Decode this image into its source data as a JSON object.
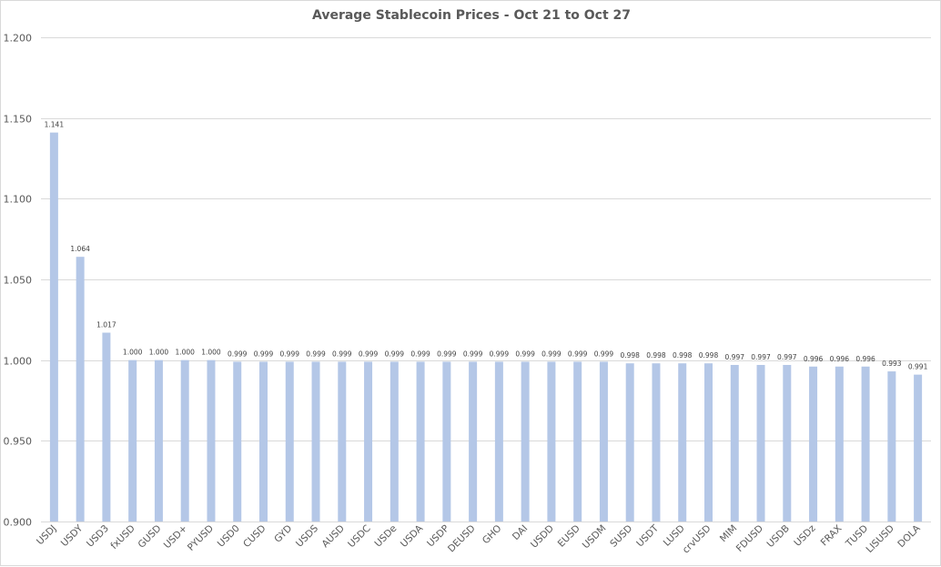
{
  "chart_data": {
    "type": "bar",
    "title": "Average Stablecoin Prices - Oct 21 to Oct 27",
    "xlabel": "",
    "ylabel": "",
    "ylim": [
      0.9,
      1.2
    ],
    "yticks": [
      "0.900",
      "0.950",
      "1.000",
      "1.050",
      "1.100",
      "1.150",
      "1.200"
    ],
    "ytick_values": [
      0.9,
      0.95,
      1.0,
      1.05,
      1.1,
      1.15,
      1.2
    ],
    "grid": true,
    "bar_color": "#b4c7e7",
    "categories": [
      "USDJ",
      "USDY",
      "USD3",
      "fxUSD",
      "GUSD",
      "USD+",
      "PYUSD",
      "USD0",
      "CUSD",
      "GYD",
      "USDS",
      "AUSD",
      "USDC",
      "USDe",
      "USDA",
      "USDP",
      "DEUSD",
      "GHO",
      "DAI",
      "USDD",
      "EUSD",
      "USDM",
      "SUSD",
      "USDT",
      "LUSD",
      "crvUSD",
      "MIM",
      "FDUSD",
      "USDB",
      "USDz",
      "FRAX",
      "TUSD",
      "LISUSD",
      "DOLA"
    ],
    "values": [
      1.141,
      1.064,
      1.017,
      1.0,
      1.0,
      1.0,
      1.0,
      0.999,
      0.999,
      0.999,
      0.999,
      0.999,
      0.999,
      0.999,
      0.999,
      0.999,
      0.999,
      0.999,
      0.999,
      0.999,
      0.999,
      0.999,
      0.998,
      0.998,
      0.998,
      0.998,
      0.997,
      0.997,
      0.997,
      0.996,
      0.996,
      0.996,
      0.993,
      0.991
    ],
    "value_labels": [
      "1.141",
      "1.064",
      "1.017",
      "1.000",
      "1.000",
      "1.000",
      "1.000",
      "0.999",
      "0.999",
      "0.999",
      "0.999",
      "0.999",
      "0.999",
      "0.999",
      "0.999",
      "0.999",
      "0.999",
      "0.999",
      "0.999",
      "0.999",
      "0.999",
      "0.999",
      "0.998",
      "0.998",
      "0.998",
      "0.998",
      "0.997",
      "0.997",
      "0.997",
      "0.996",
      "0.996",
      "0.996",
      "0.993",
      "0.991"
    ]
  }
}
